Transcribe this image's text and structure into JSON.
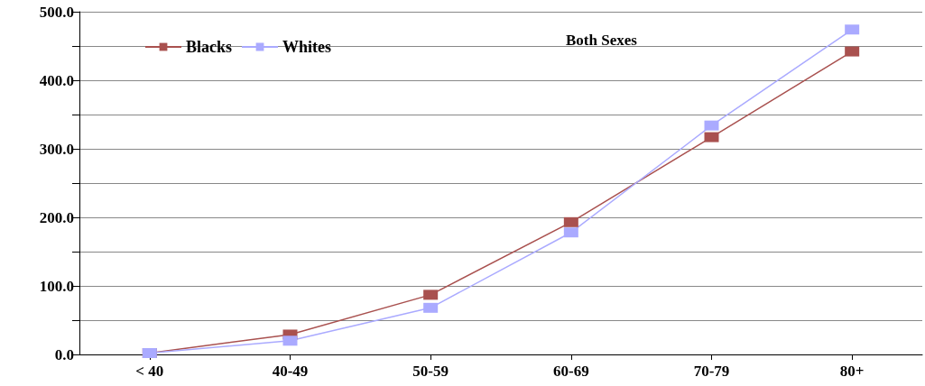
{
  "chart_data": {
    "type": "line",
    "categories": [
      "< 40",
      "40-49",
      "50-59",
      "60-69",
      "70-79",
      "80+"
    ],
    "series": [
      {
        "name": "Blacks",
        "color": "#a9514f",
        "values": [
          2,
          29,
          87,
          193,
          317,
          442
        ]
      },
      {
        "name": "Whites",
        "color": "#aaaaff",
        "values": [
          2,
          20,
          68,
          178,
          334,
          474
        ]
      }
    ],
    "ylim": [
      0,
      500
    ],
    "yticks": [
      {
        "value": 0,
        "label": "0.0"
      },
      {
        "value": 50,
        "label": null
      },
      {
        "value": 100,
        "label": "100.0"
      },
      {
        "value": 150,
        "label": null
      },
      {
        "value": 200,
        "label": "200.0"
      },
      {
        "value": 250,
        "label": null
      },
      {
        "value": 300,
        "label": "300.0"
      },
      {
        "value": 350,
        "label": null
      },
      {
        "value": 400,
        "label": "400.0"
      },
      {
        "value": 450,
        "label": null
      },
      {
        "value": 500,
        "label": "500.0"
      }
    ],
    "annotations": [
      "Both Sexes"
    ],
    "grid": "y",
    "legend": "top left",
    "marker": "square",
    "line_style": "solid"
  }
}
